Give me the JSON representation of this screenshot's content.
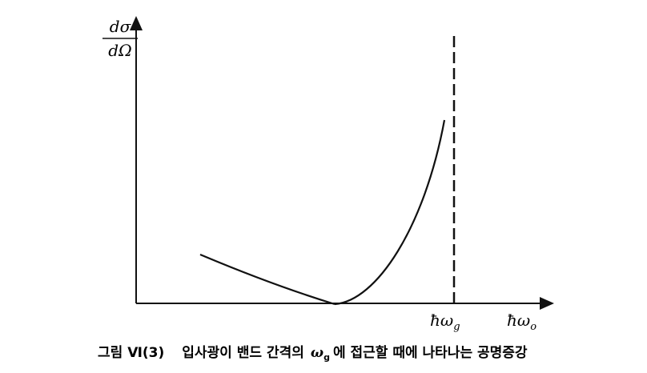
{
  "y_label": {
    "numerator": "dσ",
    "denominator": "dΩ"
  },
  "x_marker": {
    "base": "ħω",
    "sub": "g"
  },
  "x_label": {
    "base": "ħω",
    "sub": "o"
  },
  "caption": {
    "figure_number": "그림 Ⅵ(3)",
    "text_before": "입사광이 밴드 간격의",
    "symbol": "ω",
    "symbol_sub": "g",
    "text_after": "에 접근할 때에 나타나는 공명증강"
  }
}
